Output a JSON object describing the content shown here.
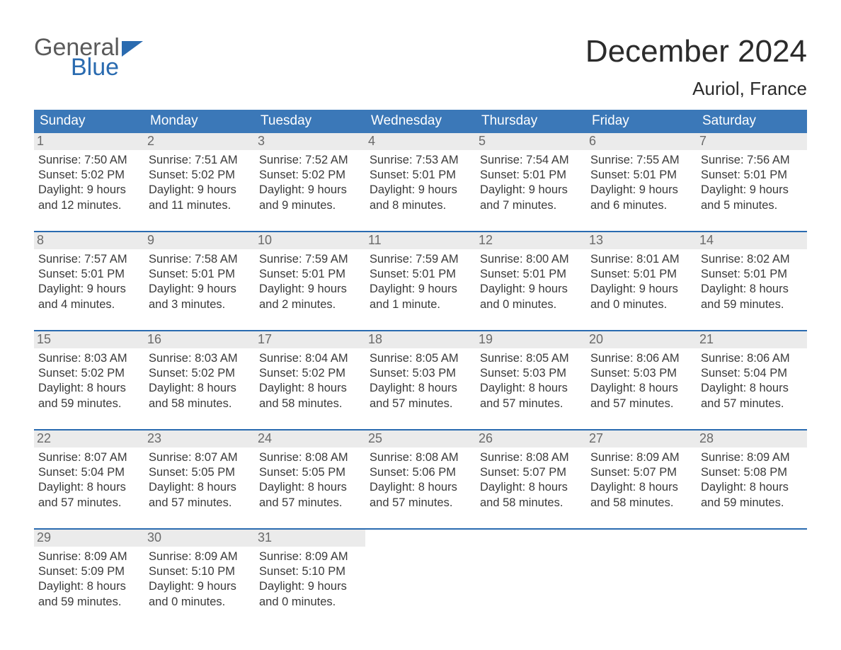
{
  "logo": {
    "word1": "General",
    "word2": "Blue"
  },
  "title": {
    "month": "December 2024",
    "location": "Auriol, France"
  },
  "colors": {
    "header_blue": "#3b78b8",
    "accent_blue": "#2a6bb0",
    "logo_gray": "#5a5a5a",
    "logo_blue": "#2a6bb0",
    "text": "#3a3a3a",
    "daynum_bg": "#ebebeb",
    "daynum_color": "#6a6a6a",
    "page_bg": "#ffffff"
  },
  "typography": {
    "title_fontsize": 44,
    "location_fontsize": 26,
    "dow_fontsize": 19,
    "daynum_fontsize": 18,
    "detail_fontsize": 16.5,
    "font_family": "Arial"
  },
  "layout": {
    "columns": 7,
    "rows": 5
  },
  "days_of_week": [
    "Sunday",
    "Monday",
    "Tuesday",
    "Wednesday",
    "Thursday",
    "Friday",
    "Saturday"
  ],
  "weeks": [
    [
      {
        "num": "1",
        "sunrise": "7:50 AM",
        "sunset": "5:02 PM",
        "daylight": "9 hours and 12 minutes."
      },
      {
        "num": "2",
        "sunrise": "7:51 AM",
        "sunset": "5:02 PM",
        "daylight": "9 hours and 11 minutes."
      },
      {
        "num": "3",
        "sunrise": "7:52 AM",
        "sunset": "5:02 PM",
        "daylight": "9 hours and 9 minutes."
      },
      {
        "num": "4",
        "sunrise": "7:53 AM",
        "sunset": "5:01 PM",
        "daylight": "9 hours and 8 minutes."
      },
      {
        "num": "5",
        "sunrise": "7:54 AM",
        "sunset": "5:01 PM",
        "daylight": "9 hours and 7 minutes."
      },
      {
        "num": "6",
        "sunrise": "7:55 AM",
        "sunset": "5:01 PM",
        "daylight": "9 hours and 6 minutes."
      },
      {
        "num": "7",
        "sunrise": "7:56 AM",
        "sunset": "5:01 PM",
        "daylight": "9 hours and 5 minutes."
      }
    ],
    [
      {
        "num": "8",
        "sunrise": "7:57 AM",
        "sunset": "5:01 PM",
        "daylight": "9 hours and 4 minutes."
      },
      {
        "num": "9",
        "sunrise": "7:58 AM",
        "sunset": "5:01 PM",
        "daylight": "9 hours and 3 minutes."
      },
      {
        "num": "10",
        "sunrise": "7:59 AM",
        "sunset": "5:01 PM",
        "daylight": "9 hours and 2 minutes."
      },
      {
        "num": "11",
        "sunrise": "7:59 AM",
        "sunset": "5:01 PM",
        "daylight": "9 hours and 1 minute."
      },
      {
        "num": "12",
        "sunrise": "8:00 AM",
        "sunset": "5:01 PM",
        "daylight": "9 hours and 0 minutes."
      },
      {
        "num": "13",
        "sunrise": "8:01 AM",
        "sunset": "5:01 PM",
        "daylight": "9 hours and 0 minutes."
      },
      {
        "num": "14",
        "sunrise": "8:02 AM",
        "sunset": "5:01 PM",
        "daylight": "8 hours and 59 minutes."
      }
    ],
    [
      {
        "num": "15",
        "sunrise": "8:03 AM",
        "sunset": "5:02 PM",
        "daylight": "8 hours and 59 minutes."
      },
      {
        "num": "16",
        "sunrise": "8:03 AM",
        "sunset": "5:02 PM",
        "daylight": "8 hours and 58 minutes."
      },
      {
        "num": "17",
        "sunrise": "8:04 AM",
        "sunset": "5:02 PM",
        "daylight": "8 hours and 58 minutes."
      },
      {
        "num": "18",
        "sunrise": "8:05 AM",
        "sunset": "5:03 PM",
        "daylight": "8 hours and 57 minutes."
      },
      {
        "num": "19",
        "sunrise": "8:05 AM",
        "sunset": "5:03 PM",
        "daylight": "8 hours and 57 minutes."
      },
      {
        "num": "20",
        "sunrise": "8:06 AM",
        "sunset": "5:03 PM",
        "daylight": "8 hours and 57 minutes."
      },
      {
        "num": "21",
        "sunrise": "8:06 AM",
        "sunset": "5:04 PM",
        "daylight": "8 hours and 57 minutes."
      }
    ],
    [
      {
        "num": "22",
        "sunrise": "8:07 AM",
        "sunset": "5:04 PM",
        "daylight": "8 hours and 57 minutes."
      },
      {
        "num": "23",
        "sunrise": "8:07 AM",
        "sunset": "5:05 PM",
        "daylight": "8 hours and 57 minutes."
      },
      {
        "num": "24",
        "sunrise": "8:08 AM",
        "sunset": "5:05 PM",
        "daylight": "8 hours and 57 minutes."
      },
      {
        "num": "25",
        "sunrise": "8:08 AM",
        "sunset": "5:06 PM",
        "daylight": "8 hours and 57 minutes."
      },
      {
        "num": "26",
        "sunrise": "8:08 AM",
        "sunset": "5:07 PM",
        "daylight": "8 hours and 58 minutes."
      },
      {
        "num": "27",
        "sunrise": "8:09 AM",
        "sunset": "5:07 PM",
        "daylight": "8 hours and 58 minutes."
      },
      {
        "num": "28",
        "sunrise": "8:09 AM",
        "sunset": "5:08 PM",
        "daylight": "8 hours and 59 minutes."
      }
    ],
    [
      {
        "num": "29",
        "sunrise": "8:09 AM",
        "sunset": "5:09 PM",
        "daylight": "8 hours and 59 minutes."
      },
      {
        "num": "30",
        "sunrise": "8:09 AM",
        "sunset": "5:10 PM",
        "daylight": "9 hours and 0 minutes."
      },
      {
        "num": "31",
        "sunrise": "8:09 AM",
        "sunset": "5:10 PM",
        "daylight": "9 hours and 0 minutes."
      },
      null,
      null,
      null,
      null
    ]
  ],
  "labels": {
    "sunrise": "Sunrise:",
    "sunset": "Sunset:",
    "daylight": "Daylight:"
  }
}
